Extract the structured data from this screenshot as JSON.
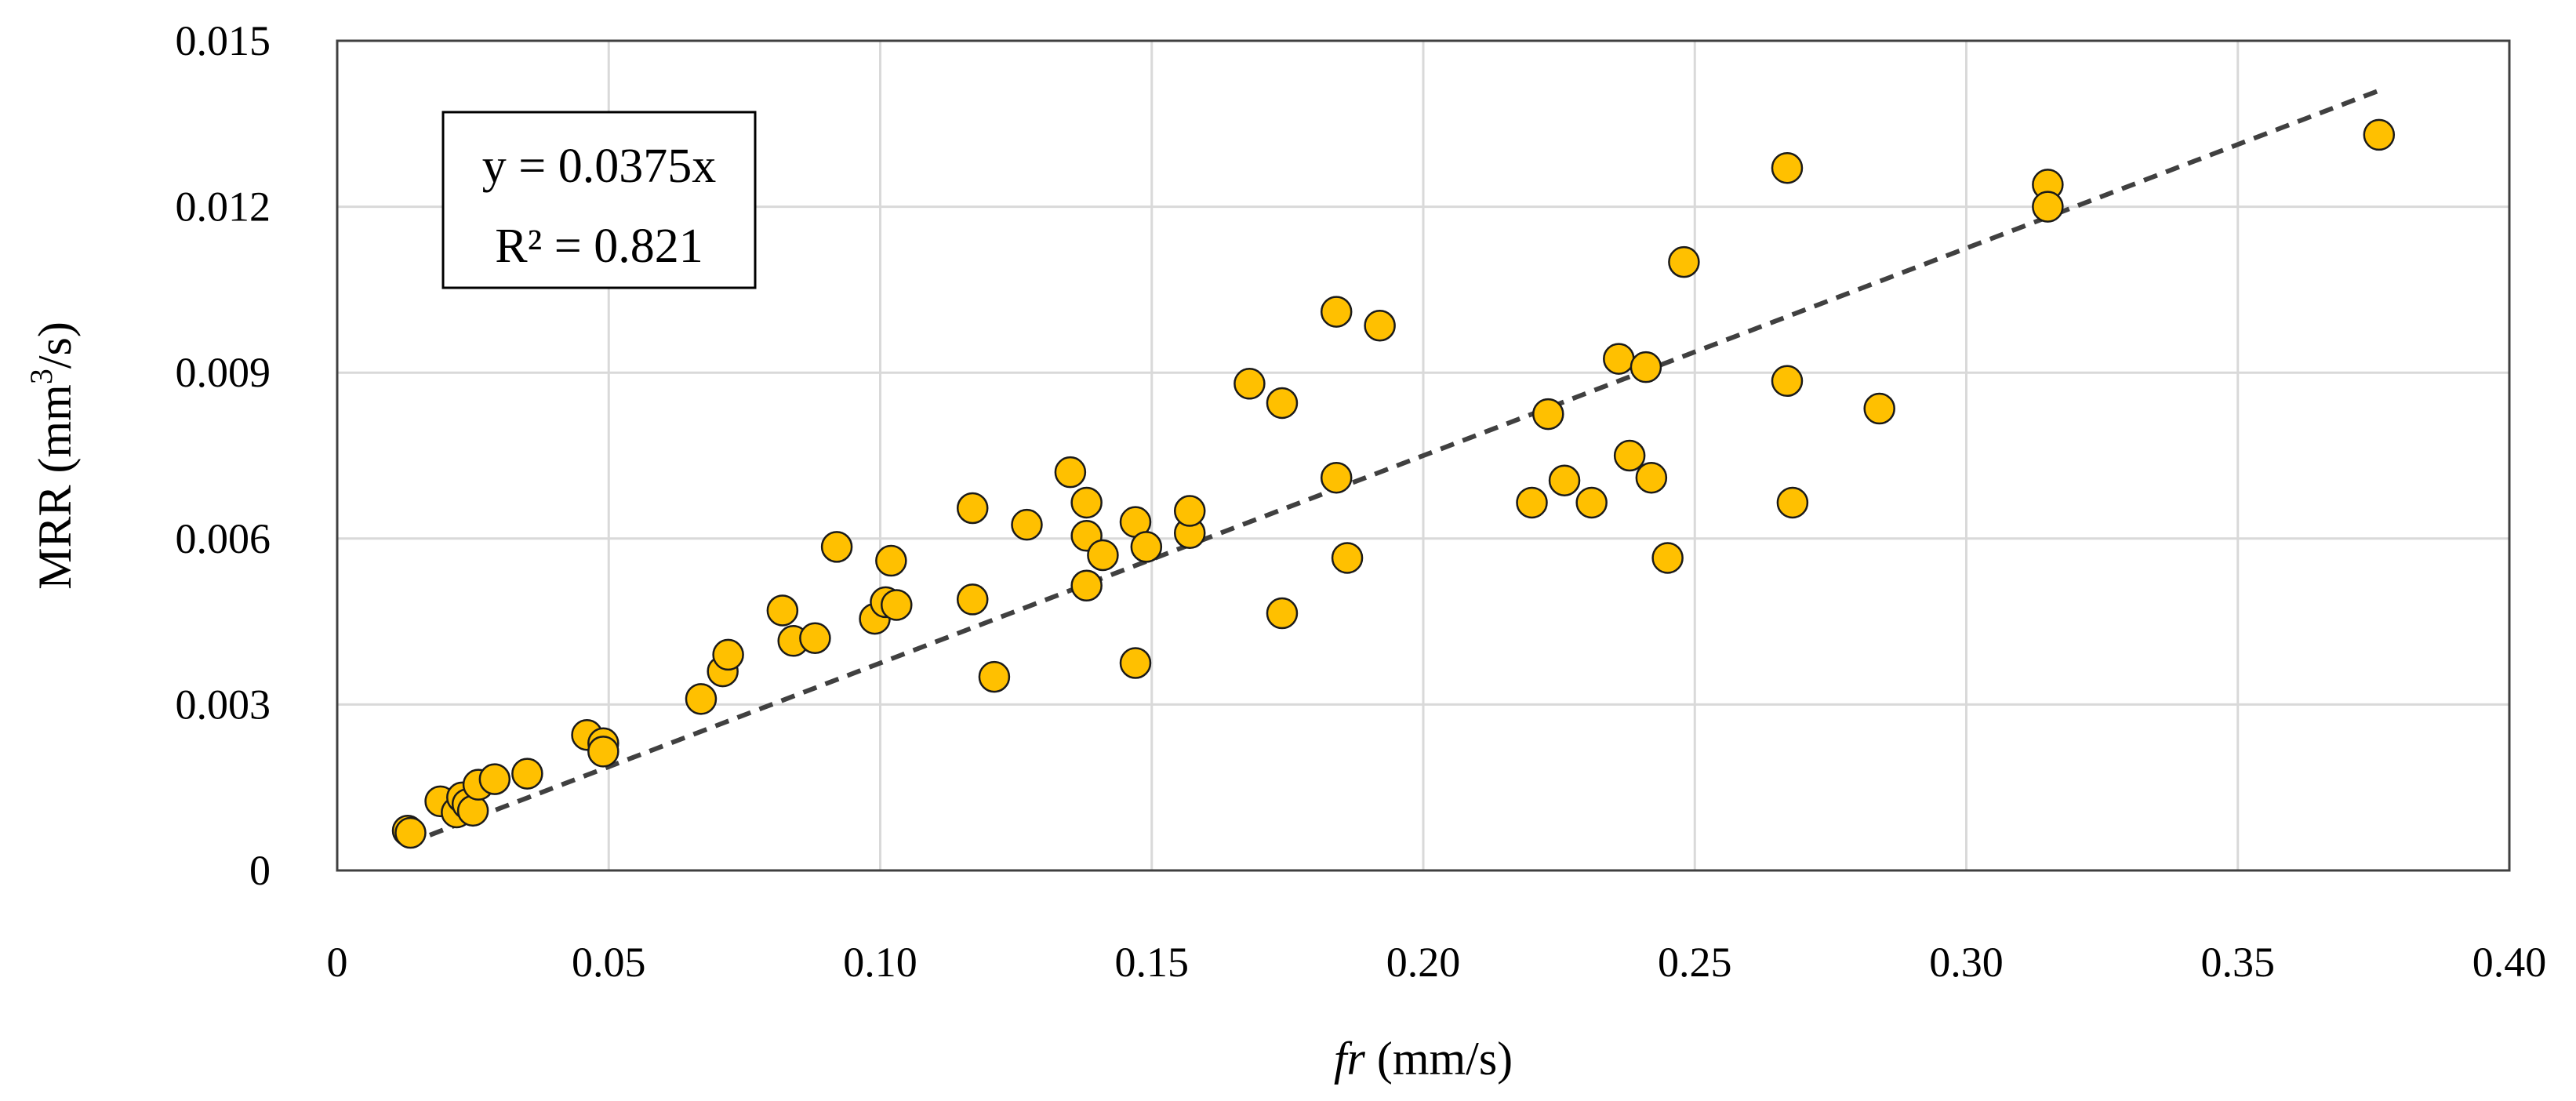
{
  "chart_data": {
    "type": "scatter",
    "title": "",
    "xlabel": {
      "italic": "fr",
      "rest": " (mm/s)"
    },
    "ylabel": {
      "base": "MRR (mm",
      "sup": "3",
      "tail": "/s)"
    },
    "xlim": [
      0,
      0.4
    ],
    "ylim": [
      0,
      0.015
    ],
    "x_ticks": [
      0,
      0.05,
      0.1,
      0.15,
      0.2,
      0.25,
      0.3,
      0.35,
      0.4
    ],
    "x_tick_labels": [
      "0",
      "0.05",
      "0.10",
      "0.15",
      "0.20",
      "0.25",
      "0.30",
      "0.35",
      "0.40"
    ],
    "y_ticks": [
      0,
      0.003,
      0.006,
      0.009,
      0.012,
      0.015
    ],
    "y_tick_labels": [
      "0",
      "0.003",
      "0.006",
      "0.009",
      "0.012",
      "0.015"
    ],
    "grid": true,
    "marker_color": "#FFC000",
    "trendline": {
      "slope": 0.0375,
      "intercept": 0,
      "x_range": [
        0.013,
        0.376
      ],
      "style": "dashed",
      "color": "#404040"
    },
    "annotation": {
      "equation": "y = 0.0375x",
      "r2": "R² = 0.821"
    },
    "series": [
      {
        "name": "MRR",
        "points": [
          [
            0.013,
            0.00072
          ],
          [
            0.0135,
            0.00068
          ],
          [
            0.019,
            0.00125
          ],
          [
            0.022,
            0.00105
          ],
          [
            0.023,
            0.00132
          ],
          [
            0.024,
            0.0012
          ],
          [
            0.025,
            0.00108
          ],
          [
            0.026,
            0.00155
          ],
          [
            0.029,
            0.00165
          ],
          [
            0.035,
            0.00175
          ],
          [
            0.046,
            0.00245
          ],
          [
            0.049,
            0.0023
          ],
          [
            0.049,
            0.00215
          ],
          [
            0.067,
            0.0031
          ],
          [
            0.071,
            0.0036
          ],
          [
            0.072,
            0.0039
          ],
          [
            0.082,
            0.0047
          ],
          [
            0.084,
            0.00415
          ],
          [
            0.088,
            0.0042
          ],
          [
            0.092,
            0.00585
          ],
          [
            0.099,
            0.00455
          ],
          [
            0.101,
            0.00485
          ],
          [
            0.103,
            0.0048
          ],
          [
            0.102,
            0.0056
          ],
          [
            0.117,
            0.00655
          ],
          [
            0.117,
            0.0049
          ],
          [
            0.121,
            0.0035
          ],
          [
            0.127,
            0.00625
          ],
          [
            0.135,
            0.0072
          ],
          [
            0.138,
            0.00665
          ],
          [
            0.138,
            0.00605
          ],
          [
            0.138,
            0.00515
          ],
          [
            0.141,
            0.0057
          ],
          [
            0.147,
            0.0063
          ],
          [
            0.147,
            0.00375
          ],
          [
            0.149,
            0.00585
          ],
          [
            0.157,
            0.0061
          ],
          [
            0.157,
            0.0065
          ],
          [
            0.168,
            0.0088
          ],
          [
            0.174,
            0.00845
          ],
          [
            0.174,
            0.00465
          ],
          [
            0.184,
            0.0101
          ],
          [
            0.184,
            0.0071
          ],
          [
            0.186,
            0.00565
          ],
          [
            0.192,
            0.00985
          ],
          [
            0.22,
            0.00665
          ],
          [
            0.223,
            0.00825
          ],
          [
            0.226,
            0.00705
          ],
          [
            0.231,
            0.00665
          ],
          [
            0.236,
            0.00925
          ],
          [
            0.238,
            0.0075
          ],
          [
            0.241,
            0.0091
          ],
          [
            0.242,
            0.0071
          ],
          [
            0.245,
            0.00565
          ],
          [
            0.248,
            0.011
          ],
          [
            0.267,
            0.0127
          ],
          [
            0.267,
            0.00885
          ],
          [
            0.268,
            0.00665
          ],
          [
            0.284,
            0.00835
          ],
          [
            0.315,
            0.0124
          ],
          [
            0.315,
            0.012
          ],
          [
            0.376,
            0.0133
          ]
        ]
      }
    ]
  }
}
